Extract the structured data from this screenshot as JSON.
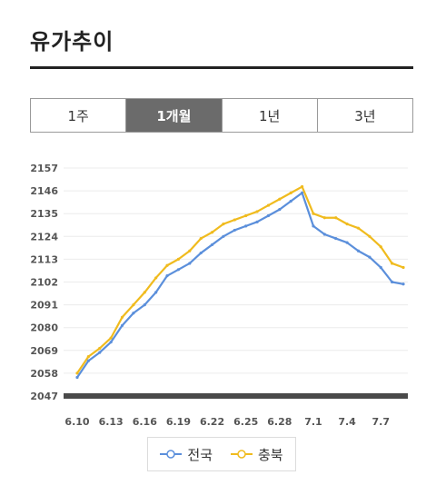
{
  "header": {
    "title": "유가추이"
  },
  "tabs": [
    {
      "label": "1주",
      "active": false
    },
    {
      "label": "1개월",
      "active": true
    },
    {
      "label": "1년",
      "active": false
    },
    {
      "label": "3년",
      "active": false
    }
  ],
  "legend": [
    {
      "label": "전국",
      "color": "#5b8fdb"
    },
    {
      "label": "충북",
      "color": "#f0bb1e"
    }
  ],
  "chart_data": {
    "type": "line",
    "x": [
      "6.10",
      "6.11",
      "6.12",
      "6.13",
      "6.14",
      "6.15",
      "6.16",
      "6.17",
      "6.18",
      "6.19",
      "6.20",
      "6.21",
      "6.22",
      "6.23",
      "6.24",
      "6.25",
      "6.26",
      "6.27",
      "6.28",
      "6.29",
      "6.30",
      "7.1",
      "7.2",
      "7.3",
      "7.4",
      "7.5",
      "7.6",
      "7.7",
      "7.8",
      "7.9"
    ],
    "x_tick_labels": [
      "6.10",
      "6.13",
      "6.16",
      "6.19",
      "6.22",
      "6.25",
      "6.28",
      "7.1",
      "7.4",
      "7.7"
    ],
    "y_tick_labels": [
      "2157",
      "2146",
      "2135",
      "2124",
      "2113",
      "2102",
      "2091",
      "2080",
      "2069",
      "2058",
      "2047"
    ],
    "ylim": [
      2047,
      2157
    ],
    "series": [
      {
        "name": "전국",
        "color": "#5b8fdb",
        "values": [
          2056,
          2064,
          2068,
          2073,
          2081,
          2087,
          2091,
          2097,
          2105,
          2108,
          2111,
          2116,
          2120,
          2124,
          2127,
          2129,
          2131,
          2134,
          2137,
          2141,
          2145,
          2129,
          2125,
          2123,
          2121,
          2117,
          2114,
          2109,
          2102,
          2101
        ]
      },
      {
        "name": "충북",
        "color": "#f0bb1e",
        "values": [
          2058,
          2066,
          2070,
          2075,
          2085,
          2091,
          2097,
          2104,
          2110,
          2113,
          2117,
          2123,
          2126,
          2130,
          2132,
          2134,
          2136,
          2139,
          2142,
          2145,
          2148,
          2135,
          2133,
          2133,
          2130,
          2128,
          2124,
          2119,
          2111,
          2109
        ]
      }
    ],
    "grid": true,
    "base_band_color": "#4a4a4a",
    "legend_position": "bottom"
  }
}
